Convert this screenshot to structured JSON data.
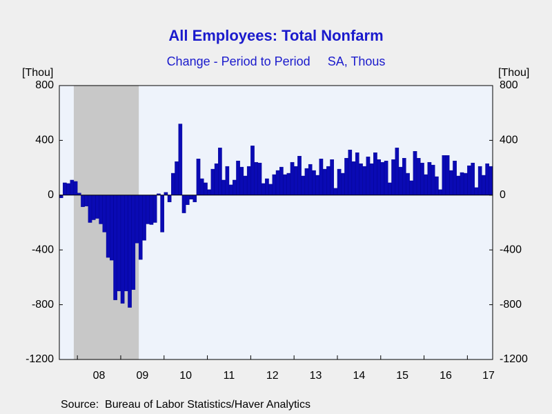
{
  "chart_data": {
    "type": "bar",
    "title": "All Employees: Total Nonfarm",
    "subtitle": "Change - Period to Period     SA, Thous",
    "y_label": "[Thou]",
    "source": "Source:  Bureau of Labor Statistics/Haver Analytics",
    "color": "#0a0ab4",
    "categories": [
      null,
      null,
      null,
      null,
      null,
      null,
      null,
      null,
      null,
      null,
      null,
      "08",
      null,
      null,
      null,
      null,
      null,
      null,
      null,
      null,
      null,
      null,
      null,
      "09",
      null,
      null,
      null,
      null,
      null,
      null,
      null,
      null,
      null,
      null,
      null,
      "10",
      null,
      null,
      null,
      null,
      null,
      null,
      null,
      null,
      null,
      null,
      null,
      "11",
      null,
      null,
      null,
      null,
      null,
      null,
      null,
      null,
      null,
      null,
      null,
      "12",
      null,
      null,
      null,
      null,
      null,
      null,
      null,
      null,
      null,
      null,
      null,
      "13",
      null,
      null,
      null,
      null,
      null,
      null,
      null,
      null,
      null,
      null,
      null,
      "14",
      null,
      null,
      null,
      null,
      null,
      null,
      null,
      null,
      null,
      null,
      null,
      "15",
      null,
      null,
      null,
      null,
      null,
      null,
      null,
      null,
      null,
      null,
      null,
      "16",
      null,
      null,
      null,
      null,
      null,
      null,
      null,
      null,
      null,
      null,
      null,
      "17"
    ],
    "values": [
      -20,
      90,
      85,
      110,
      100,
      15,
      -85,
      -80,
      -200,
      -180,
      -170,
      -210,
      -270,
      -455,
      -475,
      -765,
      -700,
      -790,
      -700,
      -820,
      -690,
      -350,
      -470,
      -330,
      -210,
      -215,
      -200,
      10,
      -270,
      20,
      -50,
      160,
      245,
      520,
      -130,
      -70,
      -30,
      -50,
      265,
      120,
      90,
      40,
      190,
      230,
      345,
      110,
      210,
      75,
      110,
      250,
      205,
      140,
      210,
      360,
      240,
      235,
      85,
      120,
      80,
      150,
      180,
      205,
      150,
      160,
      240,
      210,
      285,
      140,
      195,
      225,
      180,
      145,
      265,
      190,
      210,
      260,
      50,
      190,
      160,
      270,
      330,
      245,
      310,
      230,
      210,
      280,
      230,
      310,
      260,
      240,
      250,
      90,
      260,
      345,
      205,
      270,
      160,
      105,
      320,
      270,
      235,
      150,
      240,
      220,
      135,
      40,
      290,
      290,
      180,
      250,
      140,
      165,
      160,
      215,
      235,
      55,
      210,
      145,
      230,
      210
    ],
    "recession": {
      "from": 4,
      "to": 22,
      "color": "#c8c8c8"
    },
    "ylim": [
      -1200,
      800
    ],
    "yticks": [
      -1200,
      -800,
      -400,
      0,
      400,
      800
    ]
  }
}
